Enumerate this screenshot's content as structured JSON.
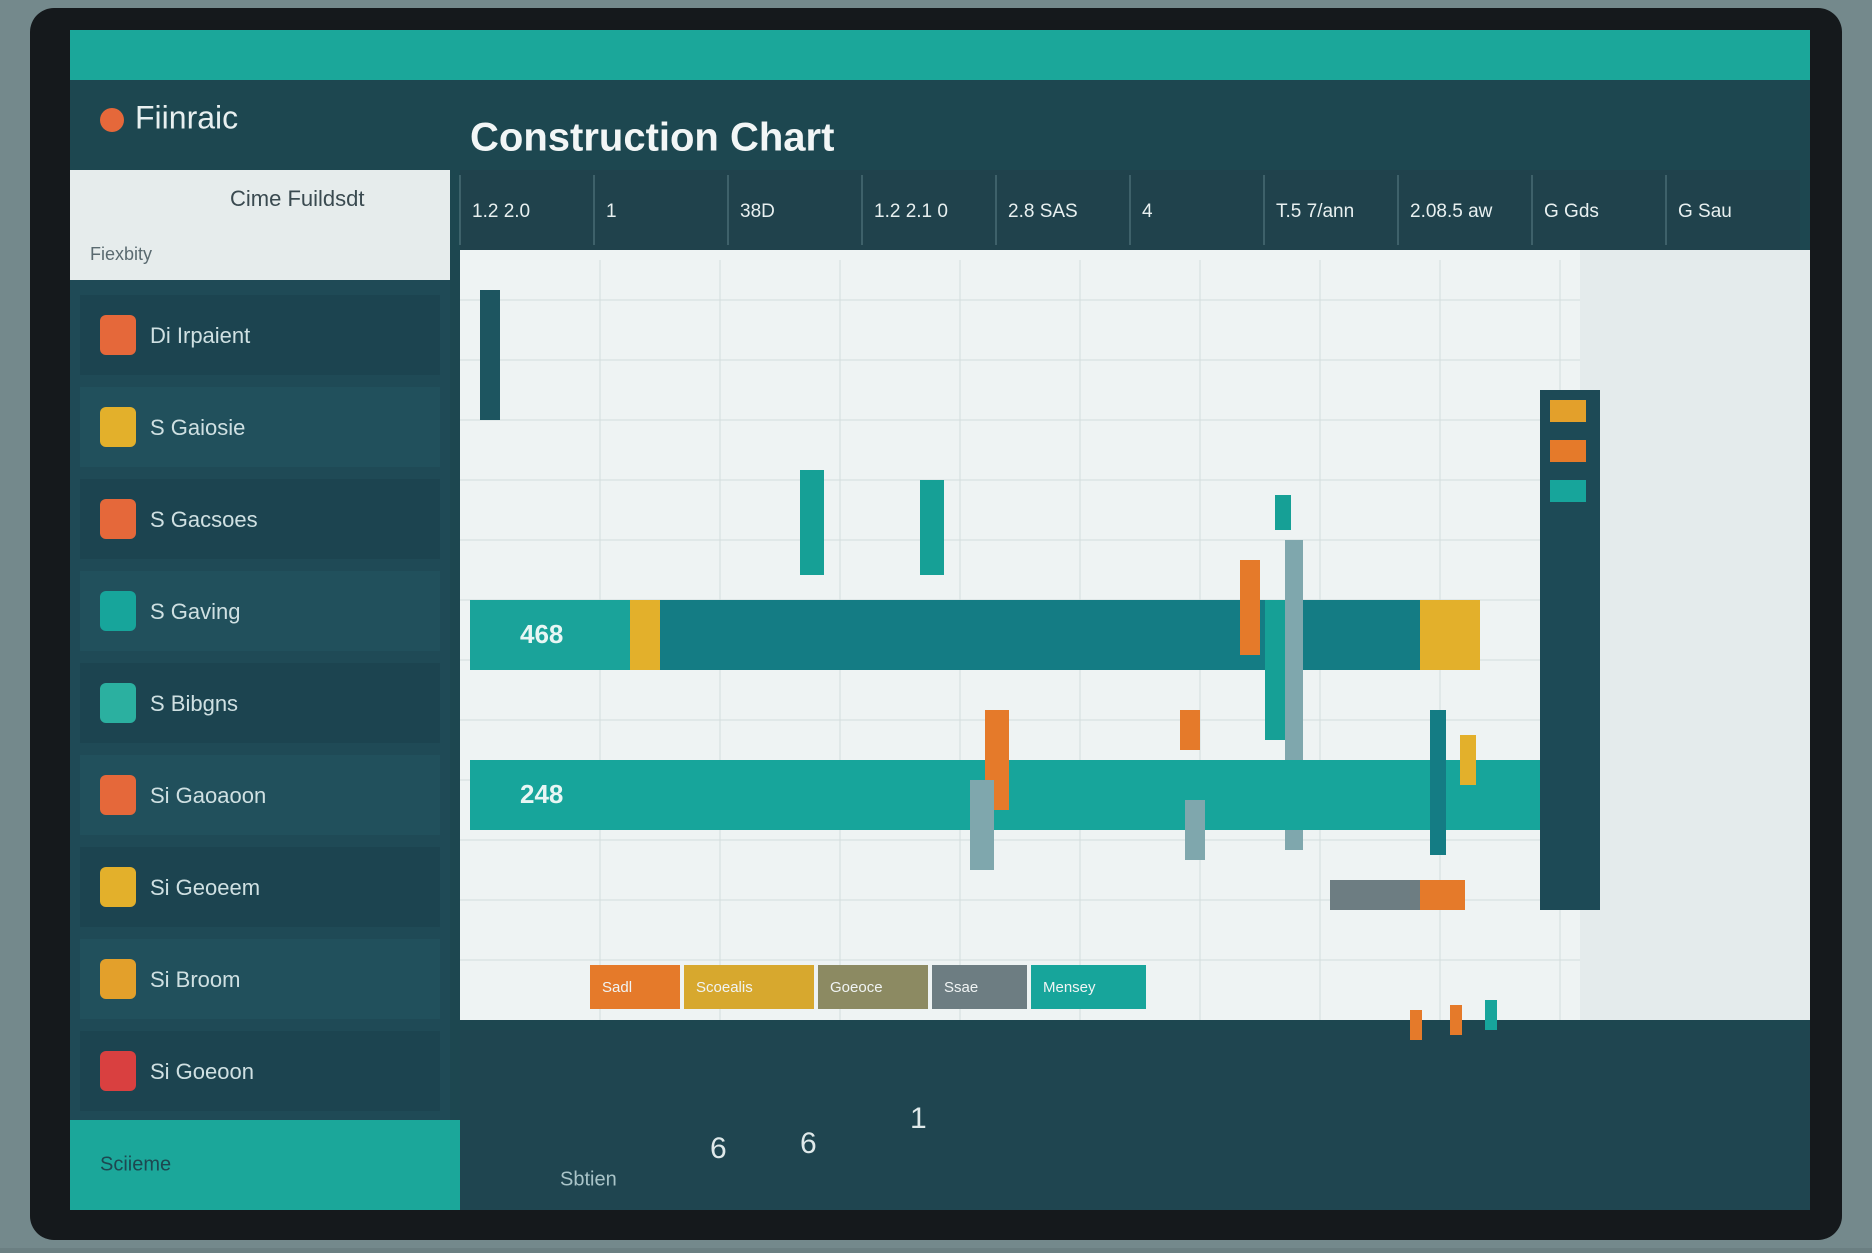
{
  "app": {
    "logo": "Fiinraic",
    "title": "Construction Chart"
  },
  "sidebar": {
    "heading": "Cime Fuildsdt",
    "section": "Fiexbity",
    "section2": "Sciieme",
    "items": [
      "Di Irpaient",
      "S Gaiosie",
      "S Gacsoes",
      "S Gaving",
      "S Bibgns",
      "Si Gaoaoon",
      "Si Geoeem",
      "Si Broom",
      "Si Goeoon"
    ]
  },
  "tabs": [
    "1.2 2.0",
    "1",
    "38D",
    "1.2 2.1 0",
    "2.8 SAS",
    "4",
    "T.5 7/ann",
    "2.08.5 aw",
    "G Gds",
    "G Sau"
  ],
  "bars": {
    "labels": [
      "468",
      "248"
    ],
    "segments": [
      "Sadl",
      "Scoealis",
      "Goeoce",
      "Ssae",
      "Mensey"
    ]
  },
  "footer": {
    "values": [
      "6",
      "6",
      "1"
    ],
    "caption": "Sbtien"
  }
}
